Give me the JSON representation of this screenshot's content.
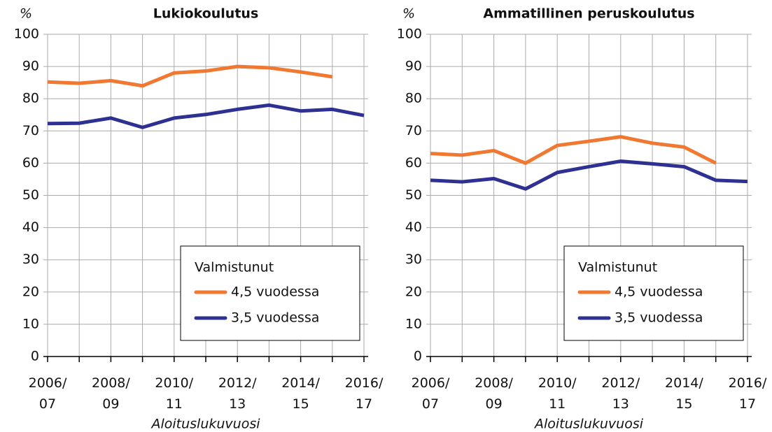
{
  "chart_data": [
    {
      "type": "line",
      "title": "Lukiokoulutus",
      "y_unit": "%",
      "xlabel": "Aloituslukuvuosi",
      "categories": [
        "2006/\n07",
        null,
        "2008/\n09",
        null,
        "2010/\n11",
        null,
        "2012/\n13",
        null,
        "2014/\n15",
        null,
        "2016/\n17"
      ],
      "legend_title": "Valmistunut",
      "legend": "lower right",
      "grid": true,
      "series": [
        {
          "name": "4,5 vuodessa",
          "color": "#f07830",
          "values": [
            85.2,
            84.8,
            85.6,
            84.0,
            88.0,
            88.6,
            90.0,
            89.6,
            88.3,
            86.8,
            null
          ]
        },
        {
          "name": "3,5 vuodessa",
          "color": "#2e3192",
          "values": [
            72.3,
            72.4,
            74.0,
            71.1,
            74.0,
            75.1,
            76.7,
            78.0,
            76.2,
            76.7,
            74.8
          ]
        }
      ],
      "ylim": [
        0,
        100
      ],
      "yticks": [
        0,
        10,
        20,
        30,
        40,
        50,
        60,
        70,
        80,
        90,
        100
      ]
    },
    {
      "type": "line",
      "title": "Ammatillinen peruskoulutus",
      "y_unit": "%",
      "xlabel": "Aloituslukuvuosi",
      "categories": [
        "2006/\n07",
        null,
        "2008/\n09",
        null,
        "2010/\n11",
        null,
        "2012/\n13",
        null,
        "2014/\n15",
        null,
        "2016/\n17"
      ],
      "legend_title": "Valmistunut",
      "legend": "lower right",
      "grid": true,
      "series": [
        {
          "name": "4,5 vuodessa",
          "color": "#f07830",
          "values": [
            63.0,
            62.5,
            63.9,
            60.0,
            65.5,
            66.8,
            68.2,
            66.2,
            65.0,
            60.0,
            null
          ]
        },
        {
          "name": "3,5 vuodessa",
          "color": "#2e3192",
          "values": [
            54.7,
            54.2,
            55.2,
            52.0,
            57.1,
            58.9,
            60.6,
            59.8,
            58.9,
            54.7,
            54.3
          ]
        }
      ],
      "ylim": [
        0,
        100
      ],
      "yticks": [
        0,
        10,
        20,
        30,
        40,
        50,
        60,
        70,
        80,
        90,
        100
      ]
    }
  ]
}
